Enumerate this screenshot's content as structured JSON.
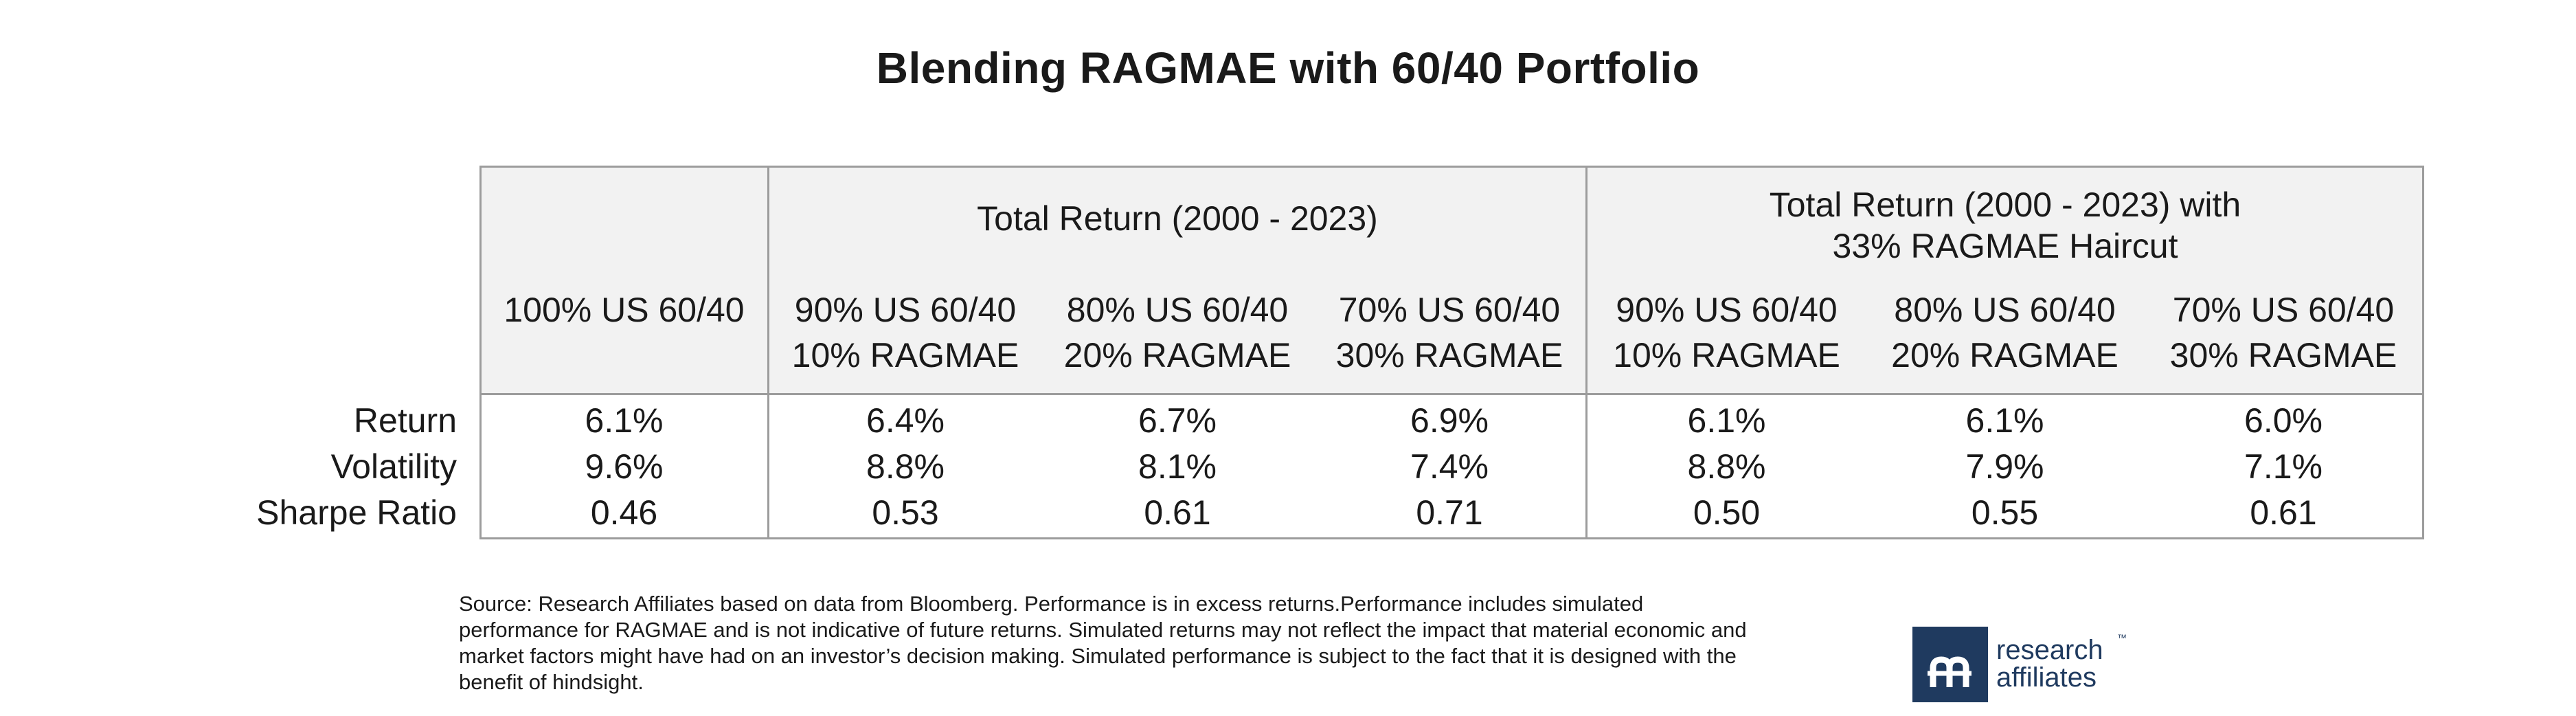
{
  "chart_data": {
    "type": "table",
    "title": "Blending RAGMAE with 60/40 Portfolio",
    "group_headers": [
      "Total Return (2000 - 2023)",
      "Total Return (2000 - 2023) with\n33% RAGMAE Haircut"
    ],
    "columns": [
      "100% US 60/40",
      "90% US 60/40\n10% RAGMAE",
      "80% US 60/40\n20% RAGMAE",
      "70% US 60/40\n30% RAGMAE",
      "90% US 60/40\n10% RAGMAE",
      "80% US 60/40\n20% RAGMAE",
      "70% US 60/40\n30% RAGMAE"
    ],
    "rows": [
      {
        "label": "Return",
        "values": [
          "6.1%",
          "6.4%",
          "6.7%",
          "6.9%",
          "6.1%",
          "6.1%",
          "6.0%"
        ]
      },
      {
        "label": "Volatility",
        "values": [
          "9.6%",
          "8.8%",
          "8.1%",
          "7.4%",
          "8.8%",
          "7.9%",
          "7.1%"
        ]
      },
      {
        "label": "Sharpe Ratio",
        "values": [
          "0.46",
          "0.53",
          "0.61",
          "0.71",
          "0.50",
          "0.55",
          "0.61"
        ]
      }
    ]
  },
  "footnote": "Source: Research Affiliates based on data from Bloomberg. Performance is in excess returns.Performance includes simulated performance for RAGMAE and is not indicative of future returns. Simulated returns may not reflect the impact that material economic and market factors might have had on an investor’s decision making. Simulated performance is subject to the fact that it is designed with the benefit of hindsight.",
  "logo": {
    "text": "research\naffiliates",
    "tm": "™",
    "color": "#1f3a5f"
  },
  "colors": {
    "header_fill": "#f2f2f2",
    "border": "#9c9c9c"
  }
}
